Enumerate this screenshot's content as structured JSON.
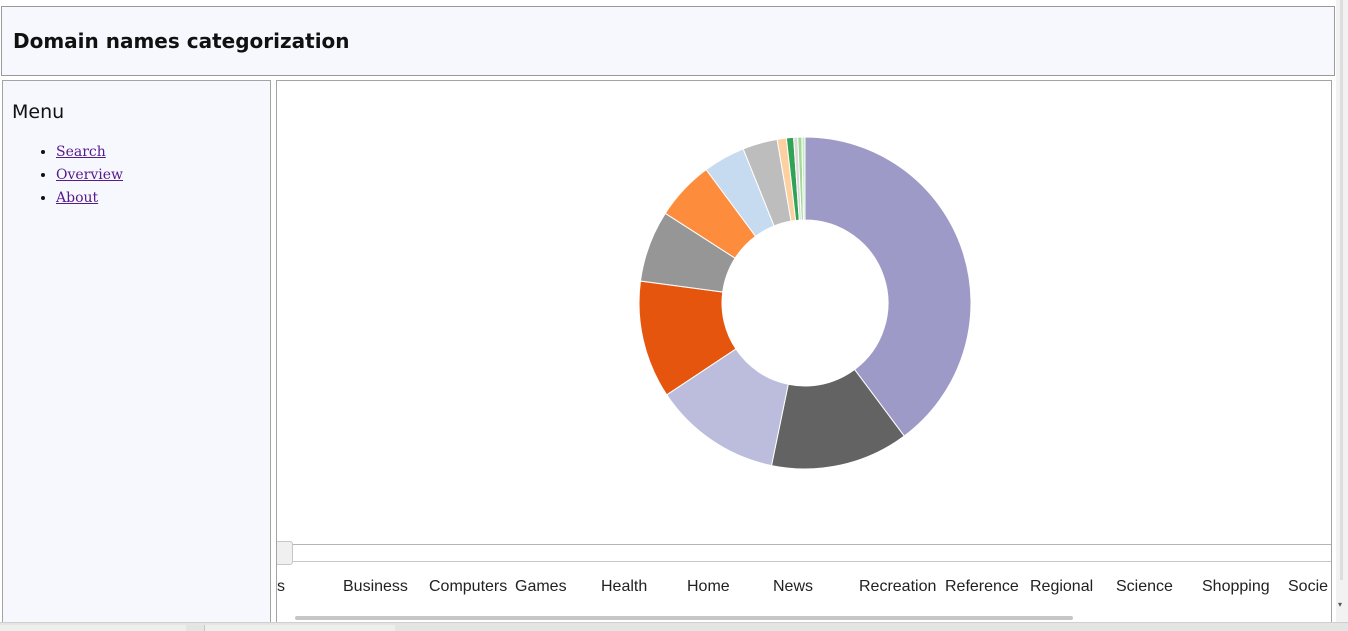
{
  "page": {
    "title": "Domain names categorization"
  },
  "menu": {
    "title": "Menu",
    "items": [
      {
        "label": "Search"
      },
      {
        "label": "Overview"
      },
      {
        "label": "About"
      }
    ]
  },
  "chart_data": {
    "type": "pie",
    "legend": [],
    "slices": [
      {
        "value": 0.4,
        "color": "#9e9ac8"
      },
      {
        "value": 0.135,
        "color": "#636363"
      },
      {
        "value": 0.125,
        "color": "#bcbddc"
      },
      {
        "value": 0.115,
        "color": "#e6550d"
      },
      {
        "value": 0.07,
        "color": "#969696"
      },
      {
        "value": 0.058,
        "color": "#fd8d3c"
      },
      {
        "value": 0.041,
        "color": "#c6dbef"
      },
      {
        "value": 0.034,
        "color": "#bdbdbd"
      },
      {
        "value": 0.009,
        "color": "#fdd0a2"
      },
      {
        "value": 0.007,
        "color": "#31a354"
      },
      {
        "value": 0.004,
        "color": "#d9d9d9"
      },
      {
        "value": 0.004,
        "color": "#a1d99b"
      },
      {
        "value": 0.003,
        "color": "#c7e9c0"
      }
    ]
  },
  "categories": [
    {
      "label": "s"
    },
    {
      "label": "Business"
    },
    {
      "label": "Computers"
    },
    {
      "label": "Games"
    },
    {
      "label": "Health"
    },
    {
      "label": "Home"
    },
    {
      "label": "News"
    },
    {
      "label": "Recreation"
    },
    {
      "label": "Reference"
    },
    {
      "label": "Regional"
    },
    {
      "label": "Science"
    },
    {
      "label": "Shopping"
    },
    {
      "label": "Socie"
    }
  ]
}
